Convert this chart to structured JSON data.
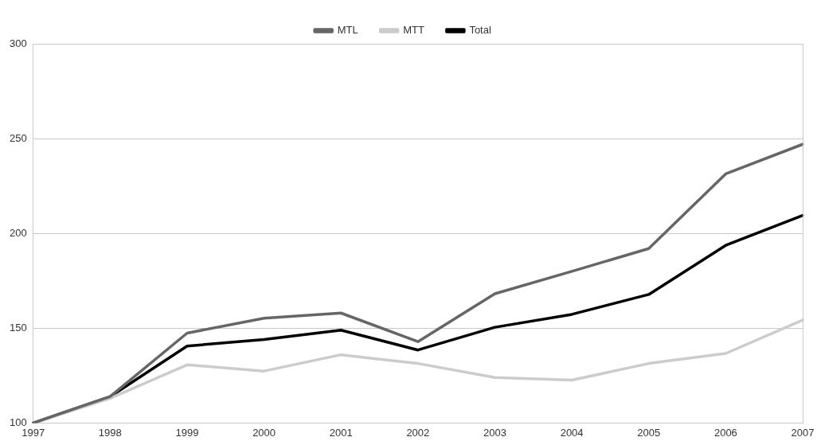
{
  "chart_data": {
    "type": "line",
    "categories": [
      "1997",
      "1998",
      "1999",
      "2000",
      "2001",
      "2002",
      "2003",
      "2004",
      "2005",
      "2006",
      "2007"
    ],
    "series": [
      {
        "name": "MTL",
        "color": "#666666",
        "values": [
          100,
          114,
          147.4,
          155.3,
          158,
          142.9,
          168.2,
          180,
          192,
          231.4,
          247
        ]
      },
      {
        "name": "MTT",
        "color": "#cccccc",
        "values": [
          100,
          113,
          130.7,
          127.4,
          136,
          131.4,
          124,
          122.6,
          131.4,
          136.7,
          154.3
        ]
      },
      {
        "name": "Total",
        "color": "#000000",
        "values": [
          100,
          113.9,
          140.6,
          144,
          149,
          138.5,
          150.5,
          157.3,
          167.8,
          193.7,
          209.5
        ]
      }
    ],
    "ylim": [
      100,
      300
    ],
    "yticks": [
      100,
      150,
      200,
      250,
      300
    ],
    "grid": "y",
    "legend": "top",
    "marker": "none",
    "line_style": "solid"
  }
}
